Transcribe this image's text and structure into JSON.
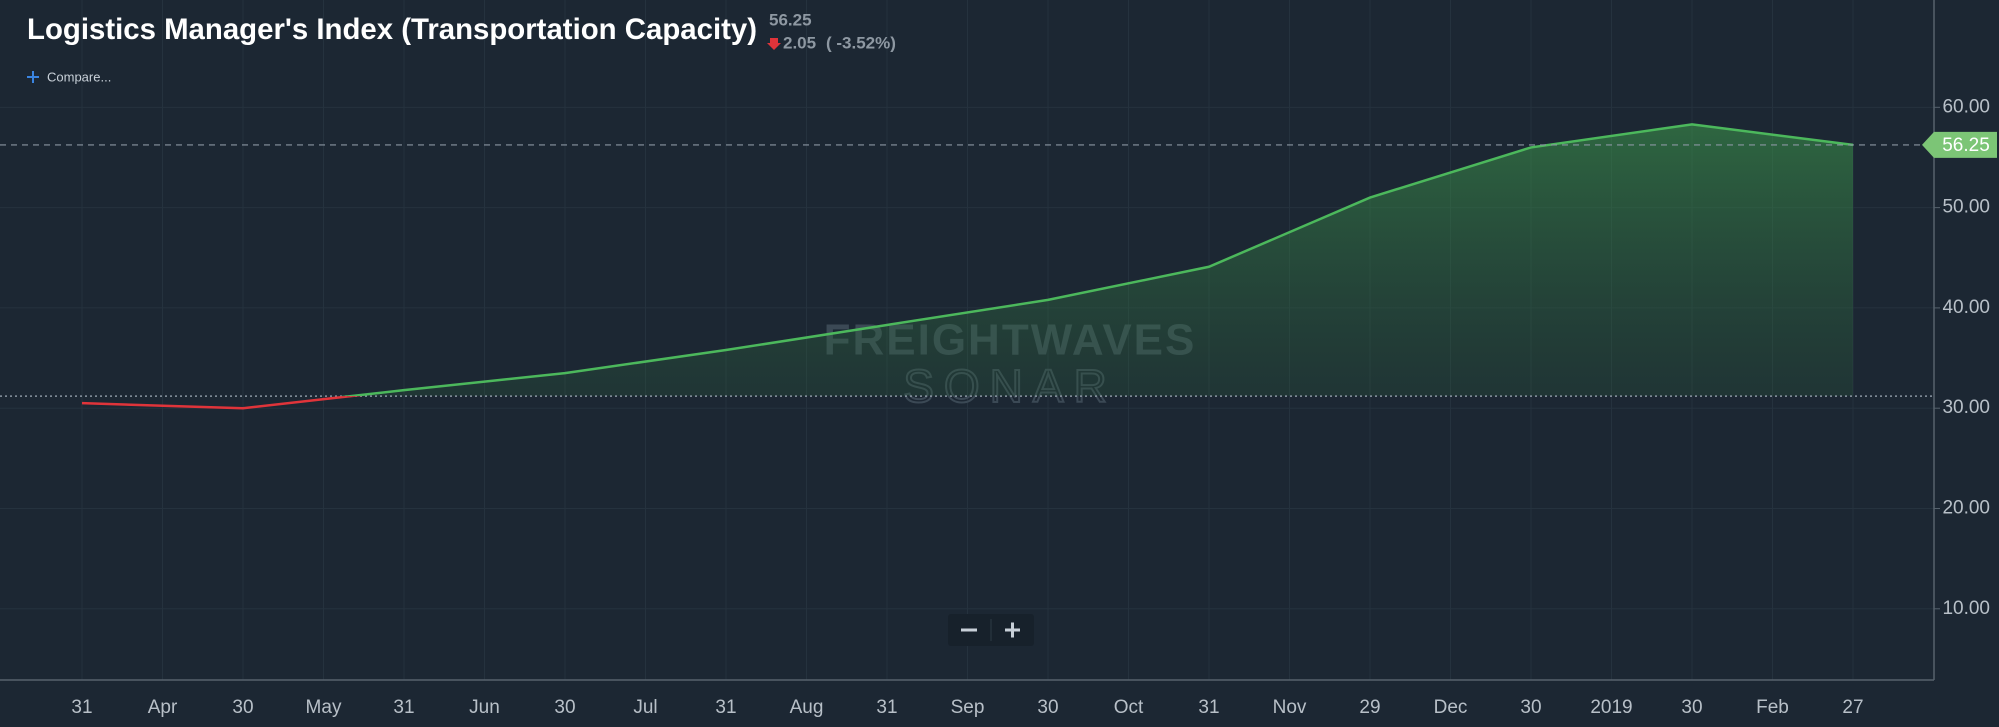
{
  "chart_data": {
    "type": "area",
    "title": "Logistics Manager's Index (Transportation Capacity)",
    "change": "2.05",
    "change_pct": "( -3.52%)",
    "compare": "Compare...",
    "watermark": [
      "FREIGHTWAVES",
      "SONAR"
    ],
    "categories": [
      "31",
      "30",
      "31",
      "30",
      "31",
      "31",
      "30",
      "31",
      "29",
      "30",
      "30",
      "27"
    ],
    "month_labels": [
      "Apr",
      "May",
      "Jun",
      "Jul",
      "Aug",
      "Sep",
      "Oct",
      "Nov",
      "Dec",
      "2019",
      "Feb"
    ],
    "values": [
      30.5,
      30.0,
      31.8,
      33.5,
      35.8,
      38.3,
      40.8,
      44.1,
      51.0,
      56.0,
      58.3,
      56.25
    ],
    "baseline": 31.2,
    "color_above": "#4cb85c",
    "color_below": "#e0343a",
    "ylim": [
      2.9,
      70.7
    ],
    "yticks": [
      {
        "value": 10,
        "label": "10.00"
      },
      {
        "value": 20,
        "label": "20.00"
      },
      {
        "value": 30,
        "label": "30.00"
      },
      {
        "value": 40,
        "label": "40.00"
      },
      {
        "value": 50,
        "label": "50.00"
      },
      {
        "value": 60,
        "label": "60.00"
      }
    ],
    "grid": true
  }
}
